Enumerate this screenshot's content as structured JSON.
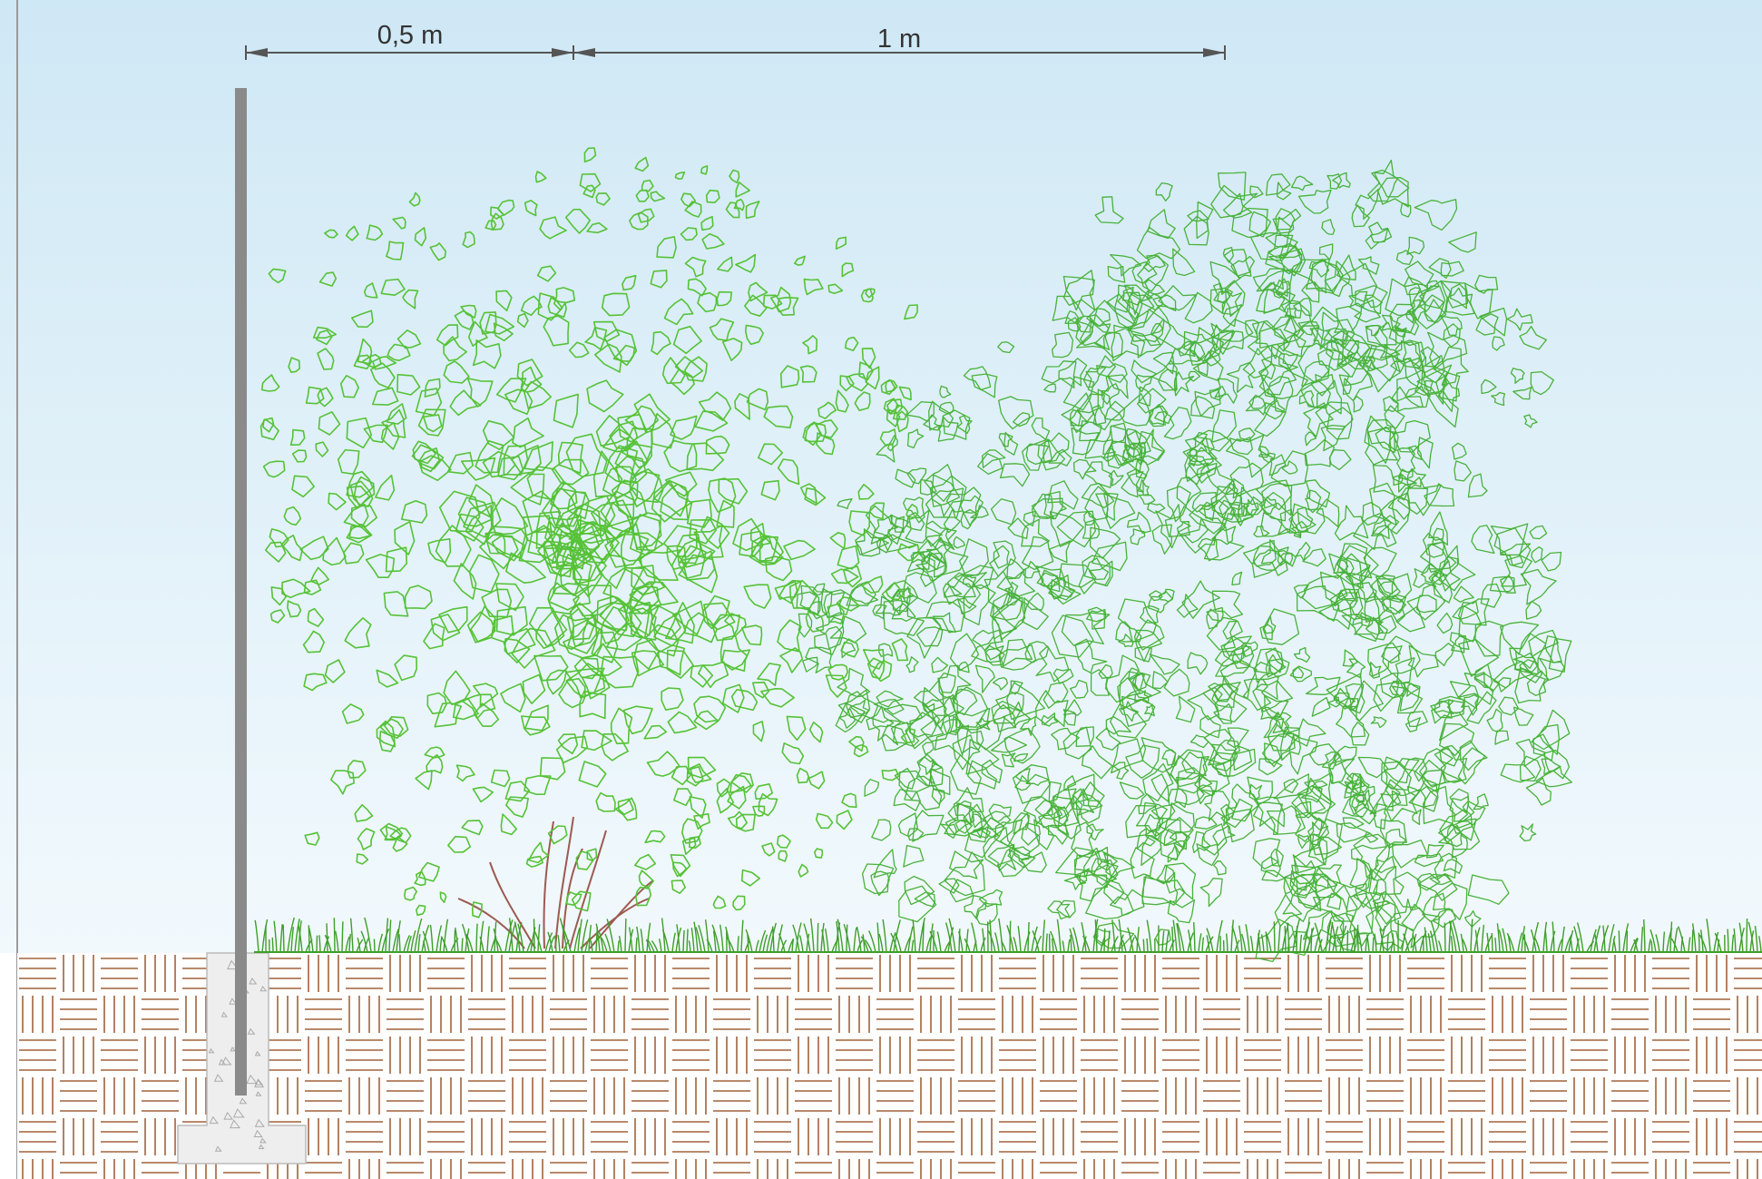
{
  "dimensions": {
    "post_to_shrub": "0,5 m",
    "shrub_to_tree": "1 m"
  },
  "colors": {
    "sky_top": "#cfe8f5",
    "sky_bottom": "#f2f9fd",
    "post": "#8a8a8a",
    "shrub_leaves": "#56c237",
    "tree_leaves": "#49b23a",
    "grass": "#3f9e2a",
    "soil_pattern": "#a0623a",
    "soil_bg": "#ffffff",
    "concrete": "#eeeeee",
    "stems": "#9c5a50"
  },
  "icons": {
    "post": "fence-post-icon",
    "shrub": "shrub-icon",
    "tree": "tree-icon"
  }
}
